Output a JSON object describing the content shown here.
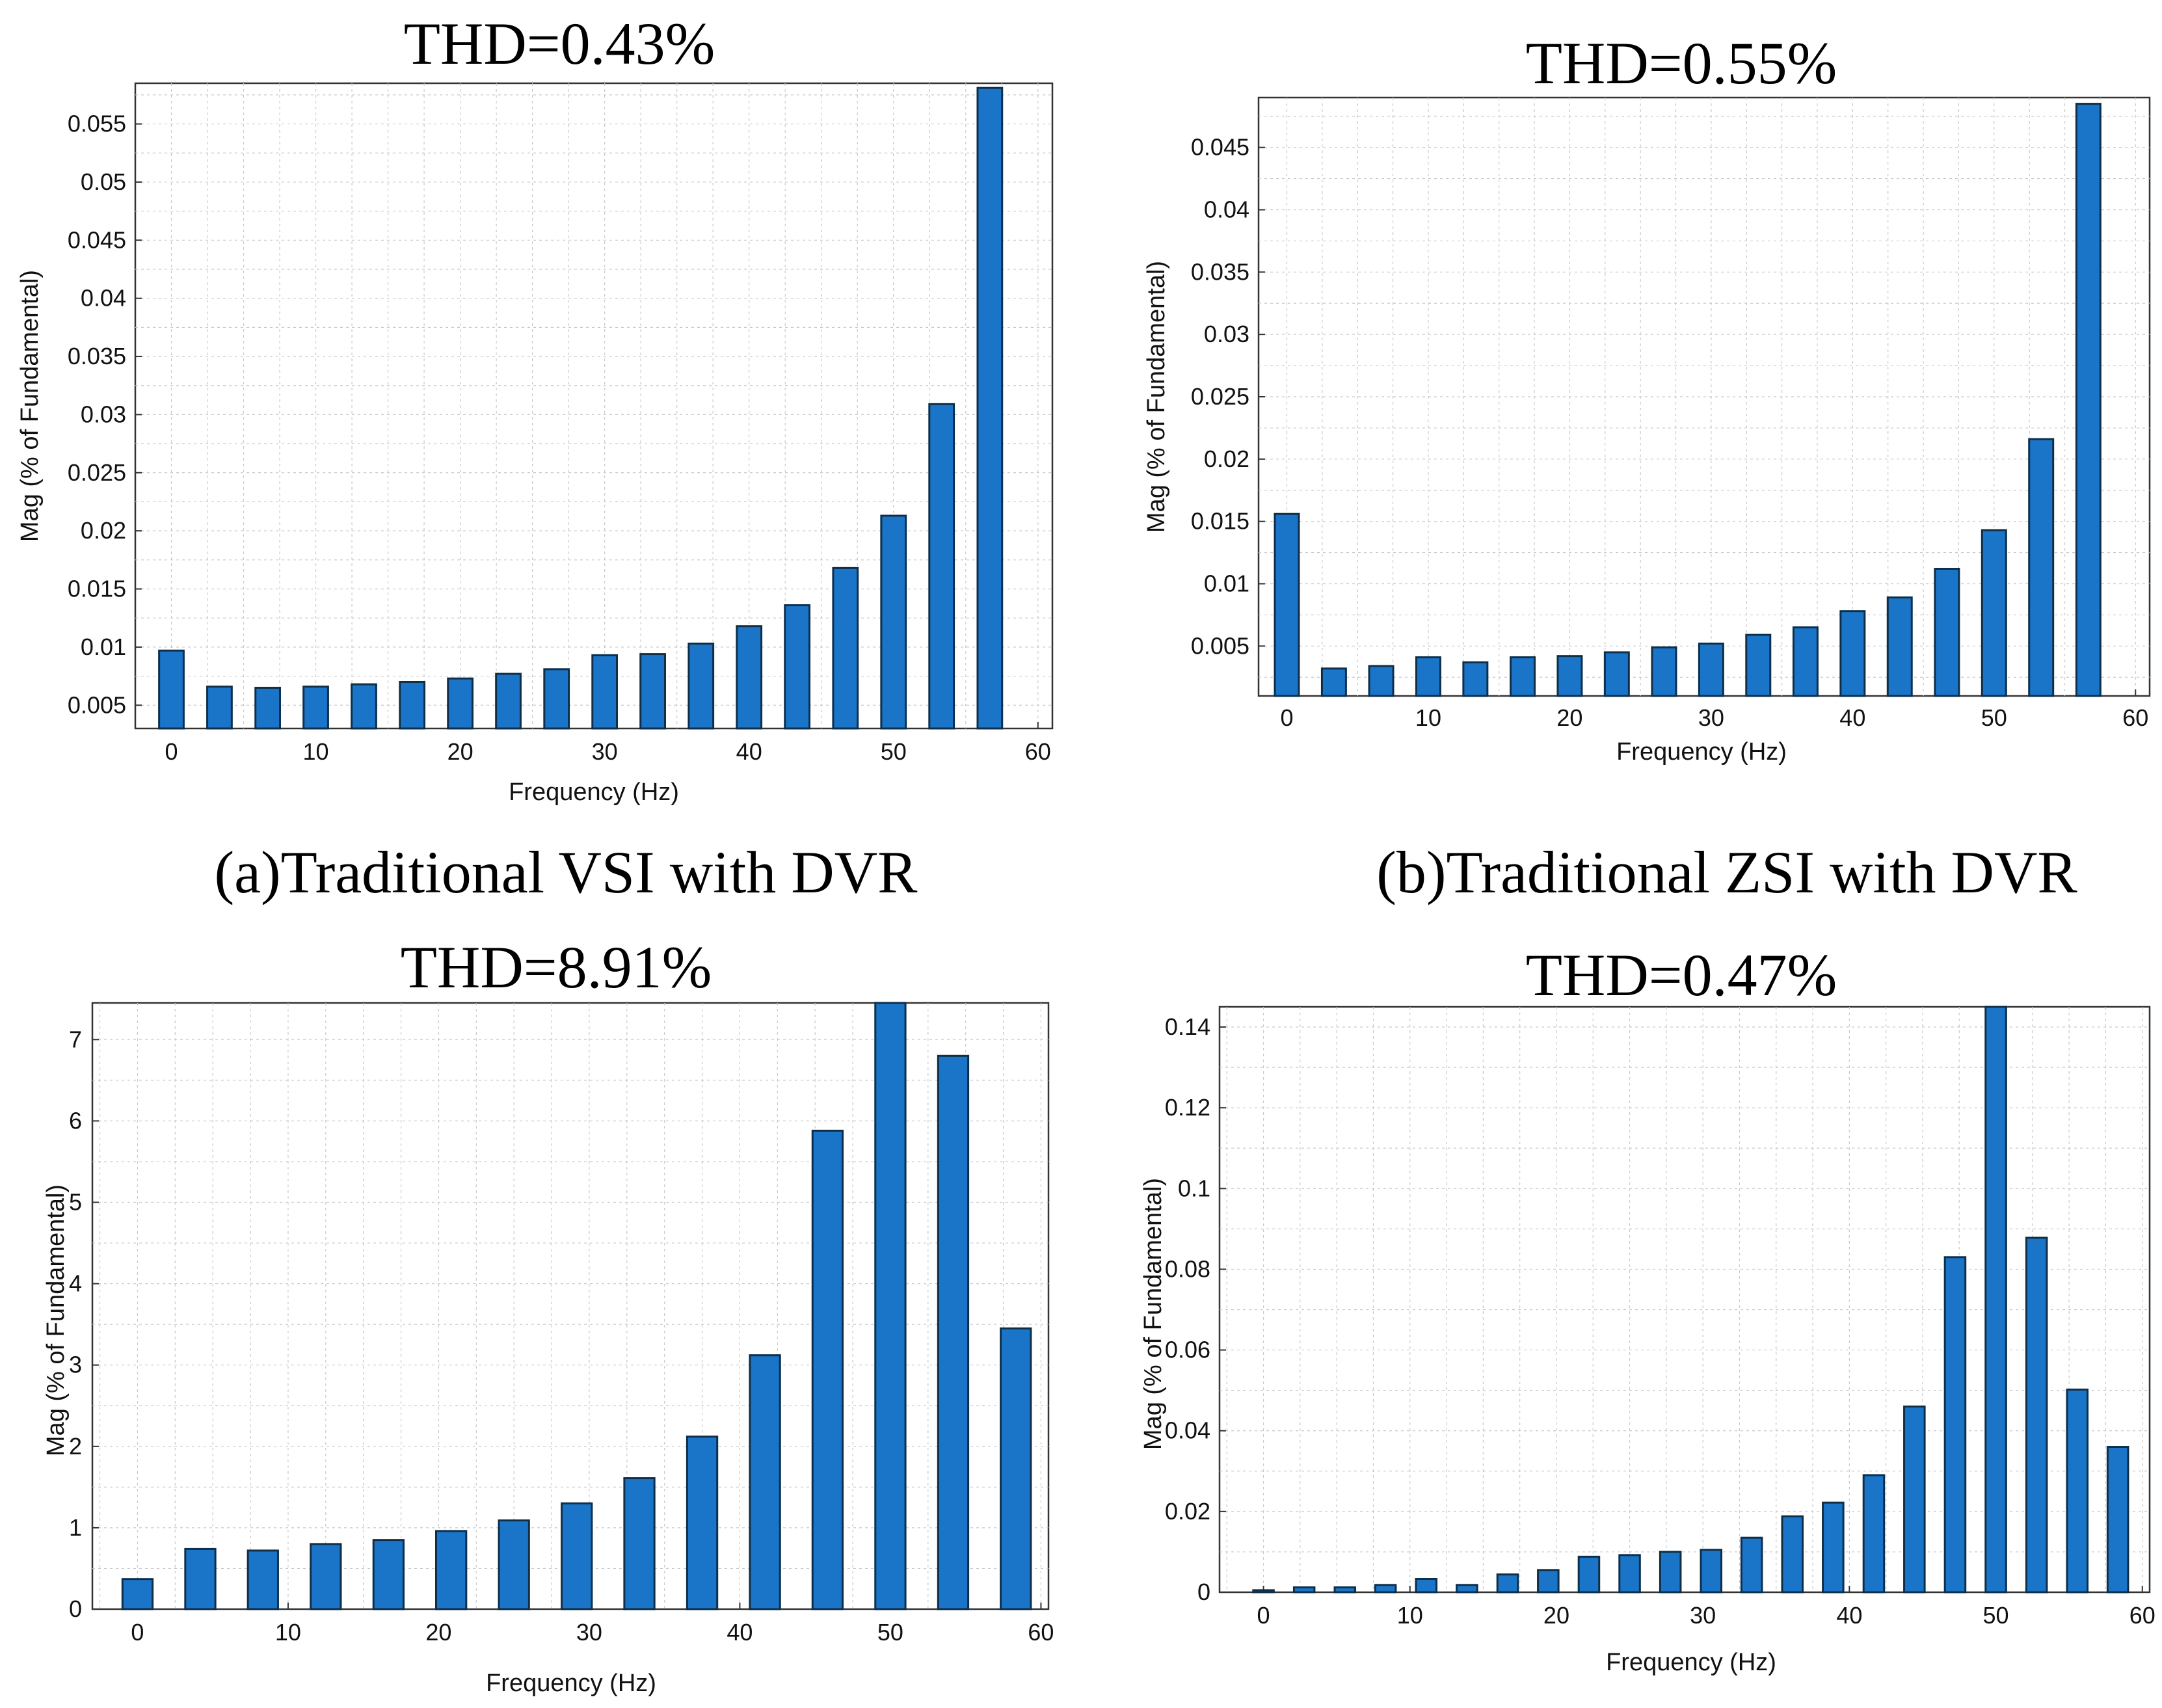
{
  "colors": {
    "bar": "#1a75c8",
    "bar_edge": "#0d2f4a",
    "grid": "#c9c9c9"
  },
  "chart_data": [
    {
      "type": "bar",
      "title": "THD=0.43%",
      "caption": "(a)Traditional VSI with DVR",
      "xlabel": "Frequency (Hz)",
      "ylabel": "Mag (% of Fundamental)",
      "xlim": [
        -2.5,
        61
      ],
      "ylim": [
        0.003,
        0.0585
      ],
      "grid": true,
      "xticks": [
        0,
        10,
        20,
        30,
        40,
        50,
        60
      ],
      "yticks": [
        0.005,
        0.01,
        0.015,
        0.02,
        0.025,
        0.03,
        0.035,
        0.04,
        0.045,
        0.05,
        0.055
      ],
      "ytick_labels": [
        "0.005",
        "0.01",
        "0.015",
        "0.02",
        "0.025",
        "0.03",
        "0.035",
        "0.04",
        "0.045",
        "0.05",
        "0.055"
      ],
      "x": [
        0,
        3.33,
        6.67,
        10,
        13.33,
        16.67,
        20,
        23.33,
        26.67,
        30,
        33.33,
        36.67,
        40,
        43.33,
        46.67,
        50,
        53.33,
        56.67
      ],
      "values": [
        0.0097,
        0.0066,
        0.0065,
        0.0066,
        0.0068,
        0.007,
        0.0073,
        0.0077,
        0.0081,
        0.0093,
        0.0094,
        0.0103,
        0.0118,
        0.0136,
        0.0168,
        0.0213,
        0.0309,
        0.0581
      ],
      "bar_width": 1.7
    },
    {
      "type": "bar",
      "title": "THD=0.55%",
      "caption": "(b)Traditional ZSI with DVR",
      "xlabel": "Frequency (Hz)",
      "ylabel": "Mag (% of Fundamental)",
      "xlim": [
        -2,
        61
      ],
      "ylim": [
        0.001,
        0.049
      ],
      "grid": true,
      "xticks": [
        0,
        10,
        20,
        30,
        40,
        50,
        60
      ],
      "yticks": [
        0.005,
        0.01,
        0.015,
        0.02,
        0.025,
        0.03,
        0.035,
        0.04,
        0.045
      ],
      "ytick_labels": [
        "0.005",
        "0.01",
        "0.015",
        "0.02",
        "0.025",
        "0.03",
        "0.035",
        "0.04",
        "0.045"
      ],
      "x": [
        0,
        3.33,
        6.67,
        10,
        13.33,
        16.67,
        20,
        23.33,
        26.67,
        30,
        33.33,
        36.67,
        40,
        43.33,
        46.67,
        50,
        53.33,
        56.67
      ],
      "values": [
        0.0156,
        0.0032,
        0.0034,
        0.0041,
        0.0037,
        0.0041,
        0.0042,
        0.0045,
        0.0049,
        0.0052,
        0.0059,
        0.0065,
        0.0078,
        0.0089,
        0.0112,
        0.0143,
        0.0216,
        0.0485
      ],
      "bar_width": 1.7
    },
    {
      "type": "bar",
      "title": "THD=8.91%",
      "caption": "",
      "xlabel": "Frequency (Hz)",
      "ylabel": "Mag (% of Fundamental)",
      "xlim": [
        -3,
        60.5
      ],
      "ylim": [
        0,
        7.45
      ],
      "grid": true,
      "xticks": [
        0,
        10,
        20,
        30,
        40,
        50,
        60
      ],
      "yticks": [
        0,
        1,
        2,
        3,
        4,
        5,
        6,
        7
      ],
      "ytick_labels": [
        "0",
        "1",
        "2",
        "3",
        "4",
        "5",
        "6",
        "7"
      ],
      "x": [
        0,
        4.17,
        8.33,
        12.5,
        16.67,
        20.83,
        25,
        29.17,
        33.33,
        37.5,
        41.67,
        45.83,
        50,
        54.17,
        58.33
      ],
      "values": [
        0.37,
        0.74,
        0.72,
        0.8,
        0.85,
        0.96,
        1.09,
        1.3,
        1.61,
        2.12,
        3.12,
        5.88,
        7.45,
        6.8,
        3.45
      ],
      "bar_width": 2.0
    },
    {
      "type": "bar",
      "title": "THD=0.47%",
      "caption": "",
      "xlabel": "Frequency (Hz)",
      "ylabel": "Mag (% of Fundamental)",
      "xlim": [
        -3,
        60.5
      ],
      "ylim": [
        0,
        0.145
      ],
      "grid": true,
      "xticks": [
        0,
        10,
        20,
        30,
        40,
        50,
        60
      ],
      "yticks": [
        0,
        0.02,
        0.04,
        0.06,
        0.08,
        0.1,
        0.12,
        0.14
      ],
      "ytick_labels": [
        "0",
        "0.02",
        "0.04",
        "0.06",
        "0.08",
        "0.1",
        "0.12",
        "0.14"
      ],
      "x": [
        0,
        2.78,
        5.56,
        8.33,
        11.11,
        13.89,
        16.67,
        19.44,
        22.22,
        25,
        27.78,
        30.56,
        33.33,
        36.11,
        38.89,
        41.67,
        44.44,
        47.22,
        50,
        52.78,
        55.56,
        58.33
      ],
      "values": [
        0.0005,
        0.0012,
        0.0012,
        0.0018,
        0.0033,
        0.0018,
        0.0044,
        0.0055,
        0.0088,
        0.0092,
        0.01,
        0.0105,
        0.0135,
        0.0188,
        0.0222,
        0.029,
        0.046,
        0.083,
        0.145,
        0.0878,
        0.0502,
        0.036
      ],
      "bar_width": 1.4
    }
  ]
}
